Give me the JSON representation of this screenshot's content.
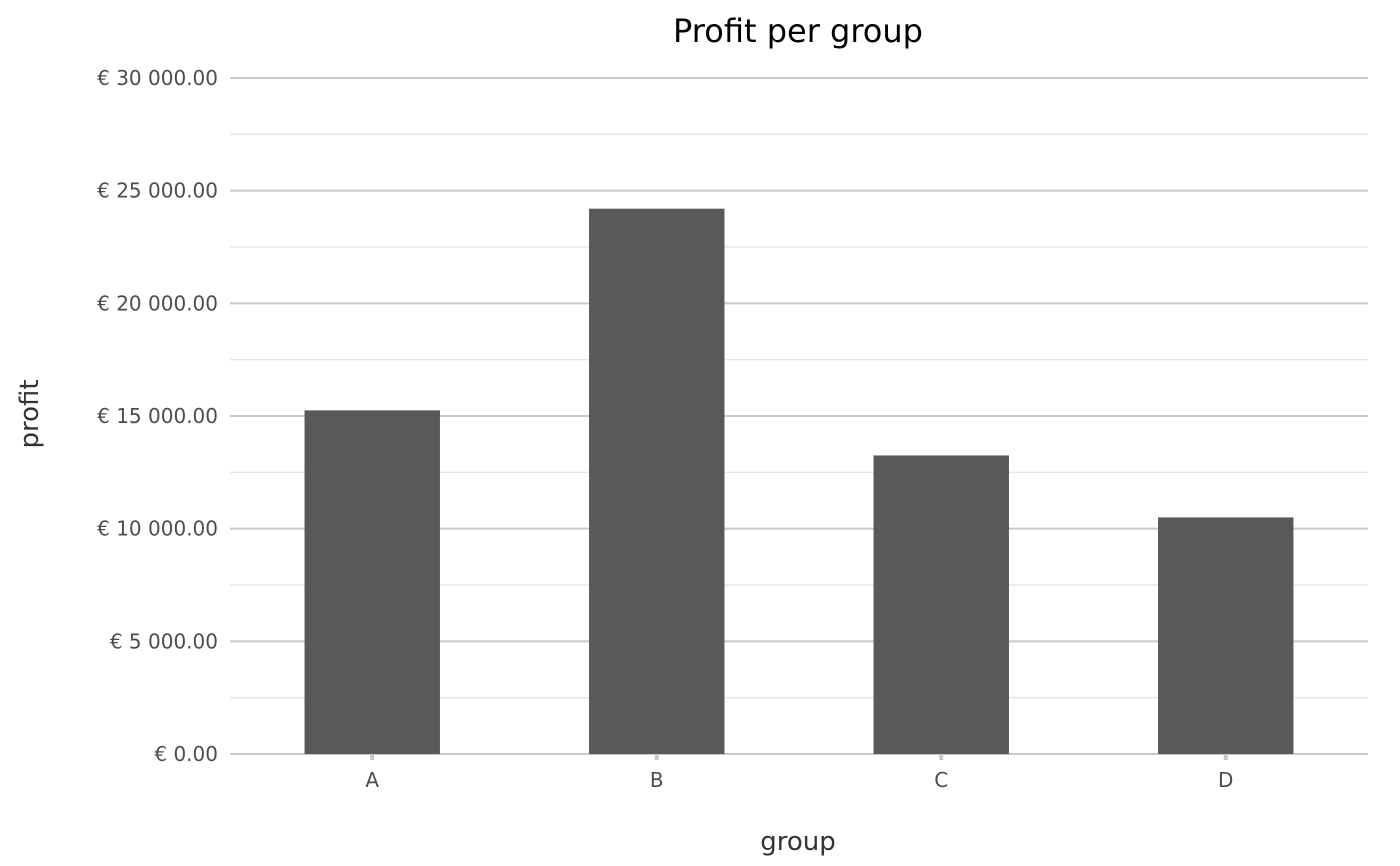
{
  "chart_data": {
    "type": "bar",
    "title": "Profit per group",
    "xlabel": "group",
    "ylabel": "profit",
    "categories": [
      "A",
      "B",
      "C",
      "D"
    ],
    "values": [
      15250,
      24200,
      13250,
      10500
    ],
    "ylim": [
      0,
      30000
    ],
    "y_ticks": [
      0,
      5000,
      10000,
      15000,
      20000,
      25000,
      30000
    ],
    "y_tick_labels": [
      "€ 0.00",
      "€ 5 000.00",
      "€ 10 000.00",
      "€ 15 000.00",
      "€ 20 000.00",
      "€ 25 000.00",
      "€ 30 000.00"
    ],
    "grid": true,
    "bar_color": "#595959",
    "legend": "none"
  }
}
